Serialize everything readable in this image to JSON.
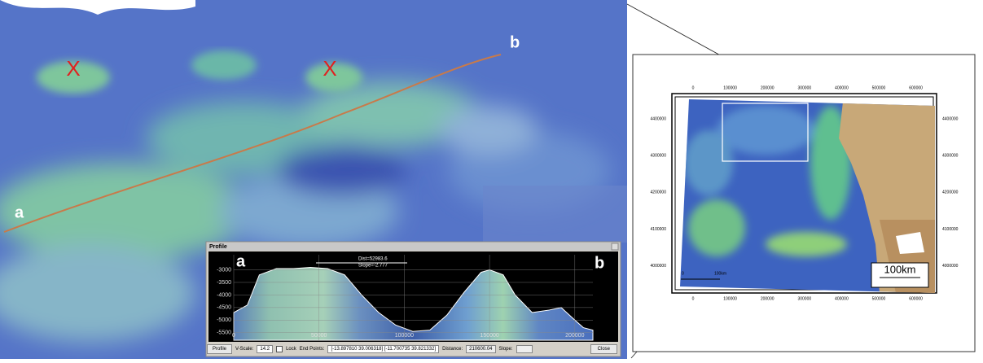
{
  "scene": {
    "label_a": "a",
    "label_b": "b",
    "markers": [
      "X",
      "X"
    ]
  },
  "profile_window": {
    "title": "Profile",
    "label_a": "a",
    "label_b": "b",
    "annotation": [
      "Dist=52983.6",
      "Slope=-2.777"
    ],
    "toolbar": {
      "mode": "Profile",
      "vscale_label": "V-Scale:",
      "vscale": "14.2",
      "lock": "Lock",
      "endpoints_label": "End Points:",
      "endpoints": "[-13.897810 39.006318] [-11.700735 39.821332]",
      "distance_label": "Distance:",
      "distance": "210600.04",
      "slope_label": "Slope:",
      "close": "Close"
    }
  },
  "chart_data": {
    "type": "area",
    "x": [
      0,
      8000,
      15000,
      25000,
      35000,
      45000,
      55000,
      65000,
      75000,
      85000,
      95000,
      105000,
      115000,
      125000,
      135000,
      145000,
      150000,
      158000,
      165000,
      175000,
      185000,
      192000,
      200000,
      205000,
      210600
    ],
    "values": [
      -4700,
      -4400,
      -3200,
      -2950,
      -2950,
      -2900,
      -2950,
      -3200,
      -4000,
      -4700,
      -5200,
      -5450,
      -5400,
      -4800,
      -3900,
      -3100,
      -3000,
      -3200,
      -4000,
      -4700,
      -4600,
      -4500,
      -5000,
      -5300,
      -5400
    ],
    "color": "#9fc5b0",
    "xlim": [
      0,
      210600
    ],
    "ylim": [
      -5800,
      -2400
    ],
    "xticks": [
      0,
      50000,
      100000,
      150000,
      200000
    ],
    "yticks": [
      -3000,
      -3500,
      -4000,
      -4500,
      -5000,
      -5500
    ],
    "grid": true
  },
  "map": {
    "xticks": [
      0,
      100000,
      200000,
      300000,
      400000,
      500000,
      600000
    ],
    "yticks": [
      4400000,
      4300000,
      4200000,
      4100000,
      4000000
    ],
    "scale_label": "100km",
    "small_scale": [
      "0",
      "100km"
    ]
  }
}
